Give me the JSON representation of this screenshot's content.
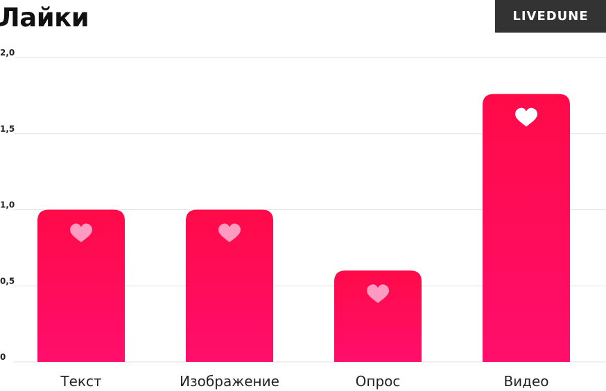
{
  "brand": {
    "name": "LIVEDUNE"
  },
  "chart_data": {
    "type": "bar",
    "title": "Лайки",
    "categories": [
      "Текст",
      "Изображение",
      "Опрос",
      "Видео"
    ],
    "values": [
      1.0,
      1.0,
      0.6,
      1.76
    ],
    "ylim": [
      0,
      2.0
    ],
    "yticks": [
      "0",
      "0,5",
      "1,0",
      "1,5",
      "2,0"
    ],
    "ytick_values": [
      0,
      0.5,
      1.0,
      1.5,
      2.0
    ],
    "grid": true,
    "legend": "none",
    "colors": {
      "bar_top": "#ff0a48",
      "bar_bottom": "#ff0e6c",
      "heart_muted": "#ff9ac0",
      "heart_highlight": "#ffffff",
      "grid": "#e2e2e2"
    },
    "bar_icon": "heart-icon",
    "highlighted_index": 3
  }
}
